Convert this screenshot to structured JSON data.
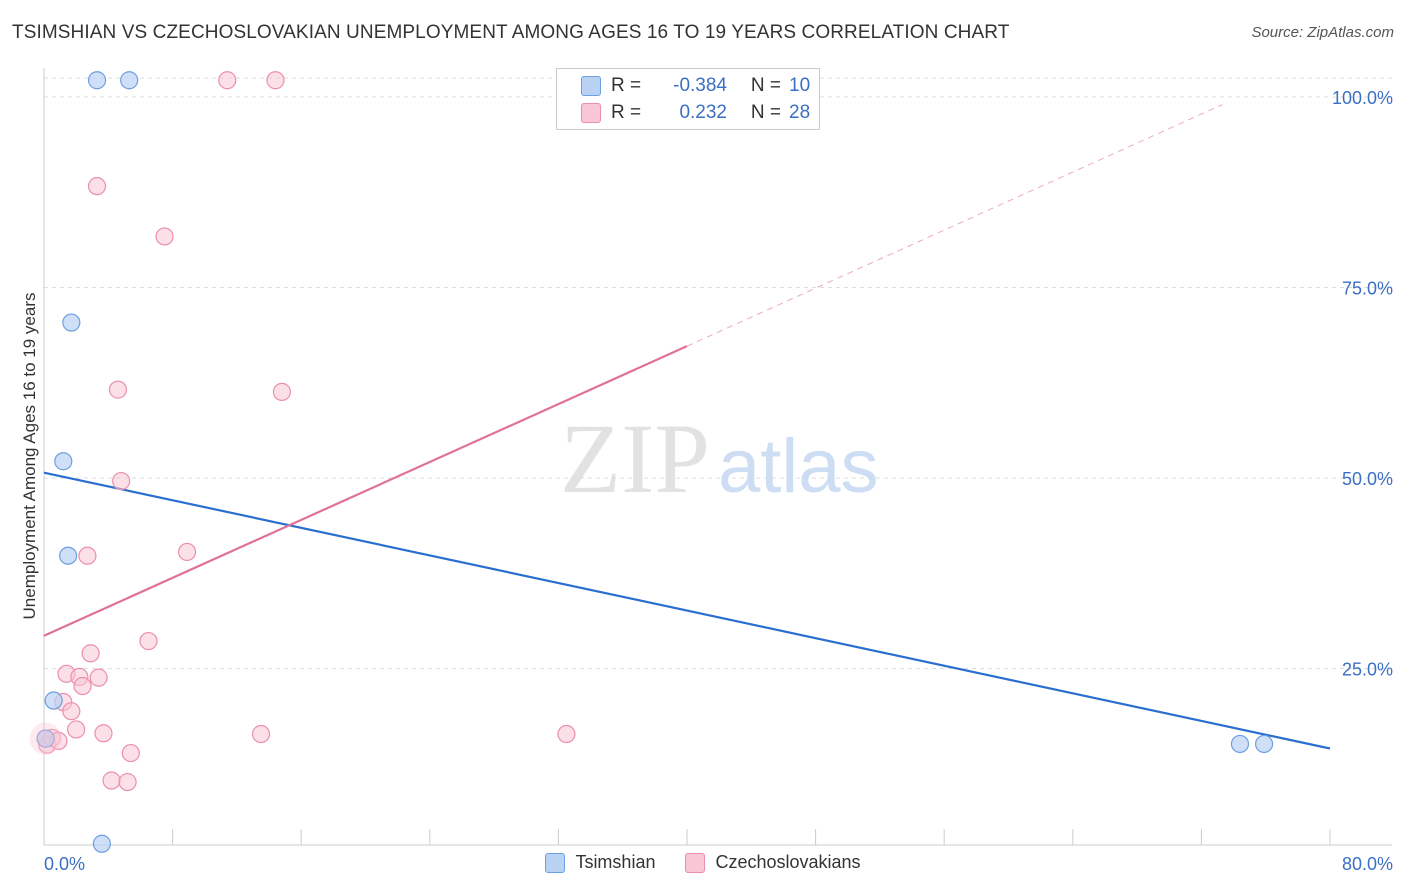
{
  "title": "TSIMSHIAN VS CZECHOSLOVAKIAN UNEMPLOYMENT AMONG AGES 16 TO 19 YEARS CORRELATION CHART",
  "source": "Source: ZipAtlas.com",
  "colors": {
    "tsimshian_fill": "#b9d2f3",
    "tsimshian_stroke": "#6c9fe0",
    "tsimshian_line": "#2a6fcf",
    "czech_fill": "#f8c6d4",
    "czech_stroke": "#ec8fac",
    "czech_line": "#e07099",
    "axis_label": "#3b6fc4"
  },
  "stats": {
    "rows": [
      {
        "r_label": "R =",
        "r_value": "-0.384",
        "n_label": "N =",
        "n_value": "10"
      },
      {
        "r_label": "R =",
        "r_value": "0.232",
        "n_label": "N =",
        "n_value": "28"
      }
    ]
  },
  "legend": {
    "tsimshian": "Tsimshian",
    "czech": "Czechoslovakians"
  },
  "watermark": {
    "zip": "ZIP",
    "atlas": "atlas"
  },
  "chart_data": {
    "type": "scatter",
    "title": "TSIMSHIAN VS CZECHOSLOVAKIAN UNEMPLOYMENT AMONG AGES 16 TO 19 YEARS CORRELATION CHART",
    "xlabel": "",
    "ylabel": "Unemployment Among Ages 16 to 19 years",
    "xlim": [
      0,
      80
    ],
    "ylim": [
      0,
      100
    ],
    "x_tick_labels": [
      "0.0%",
      "80.0%"
    ],
    "y_ticks": [
      25,
      50,
      75,
      100
    ],
    "y_tick_labels": [
      "25.0%",
      "50.0%",
      "75.0%",
      "100.0%"
    ],
    "grid": true,
    "series": [
      {
        "name": "Tsimshian",
        "points": [
          [
            0.1,
            15.8
          ],
          [
            0.6,
            20.8
          ],
          [
            1.2,
            52.2
          ],
          [
            1.5,
            39.8
          ],
          [
            1.7,
            70.4
          ],
          [
            3.6,
            2.0
          ],
          [
            3.3,
            102.2
          ],
          [
            5.3,
            102.2
          ],
          [
            74.4,
            15.1
          ],
          [
            75.9,
            15.1
          ]
        ],
        "trend": {
          "x": [
            0,
            80
          ],
          "y": [
            50.7,
            14.5
          ]
        }
      },
      {
        "name": "Czechoslovakians",
        "points": [
          [
            0.1,
            15.8
          ],
          [
            0.2,
            15.0
          ],
          [
            0.5,
            15.9
          ],
          [
            0.9,
            15.5
          ],
          [
            1.2,
            20.6
          ],
          [
            1.4,
            24.3
          ],
          [
            1.7,
            19.4
          ],
          [
            2.0,
            17.0
          ],
          [
            2.2,
            23.9
          ],
          [
            2.4,
            22.7
          ],
          [
            2.7,
            39.8
          ],
          [
            2.9,
            27.0
          ],
          [
            3.4,
            23.8
          ],
          [
            3.7,
            16.5
          ],
          [
            4.2,
            10.3
          ],
          [
            4.6,
            61.6
          ],
          [
            4.8,
            49.6
          ],
          [
            5.2,
            10.1
          ],
          [
            5.4,
            13.9
          ],
          [
            6.5,
            28.6
          ],
          [
            7.5,
            81.7
          ],
          [
            8.9,
            40.3
          ],
          [
            3.3,
            88.3
          ],
          [
            11.4,
            102.2
          ],
          [
            13.5,
            16.4
          ],
          [
            14.4,
            102.2
          ],
          [
            14.8,
            61.3
          ],
          [
            32.5,
            16.4
          ]
        ],
        "trend": {
          "x": [
            0,
            40
          ],
          "y": [
            29.3,
            67.3
          ]
        },
        "trend_extension": {
          "x": [
            40,
            73.3
          ],
          "y": [
            67.3,
            99.0
          ]
        }
      }
    ]
  }
}
